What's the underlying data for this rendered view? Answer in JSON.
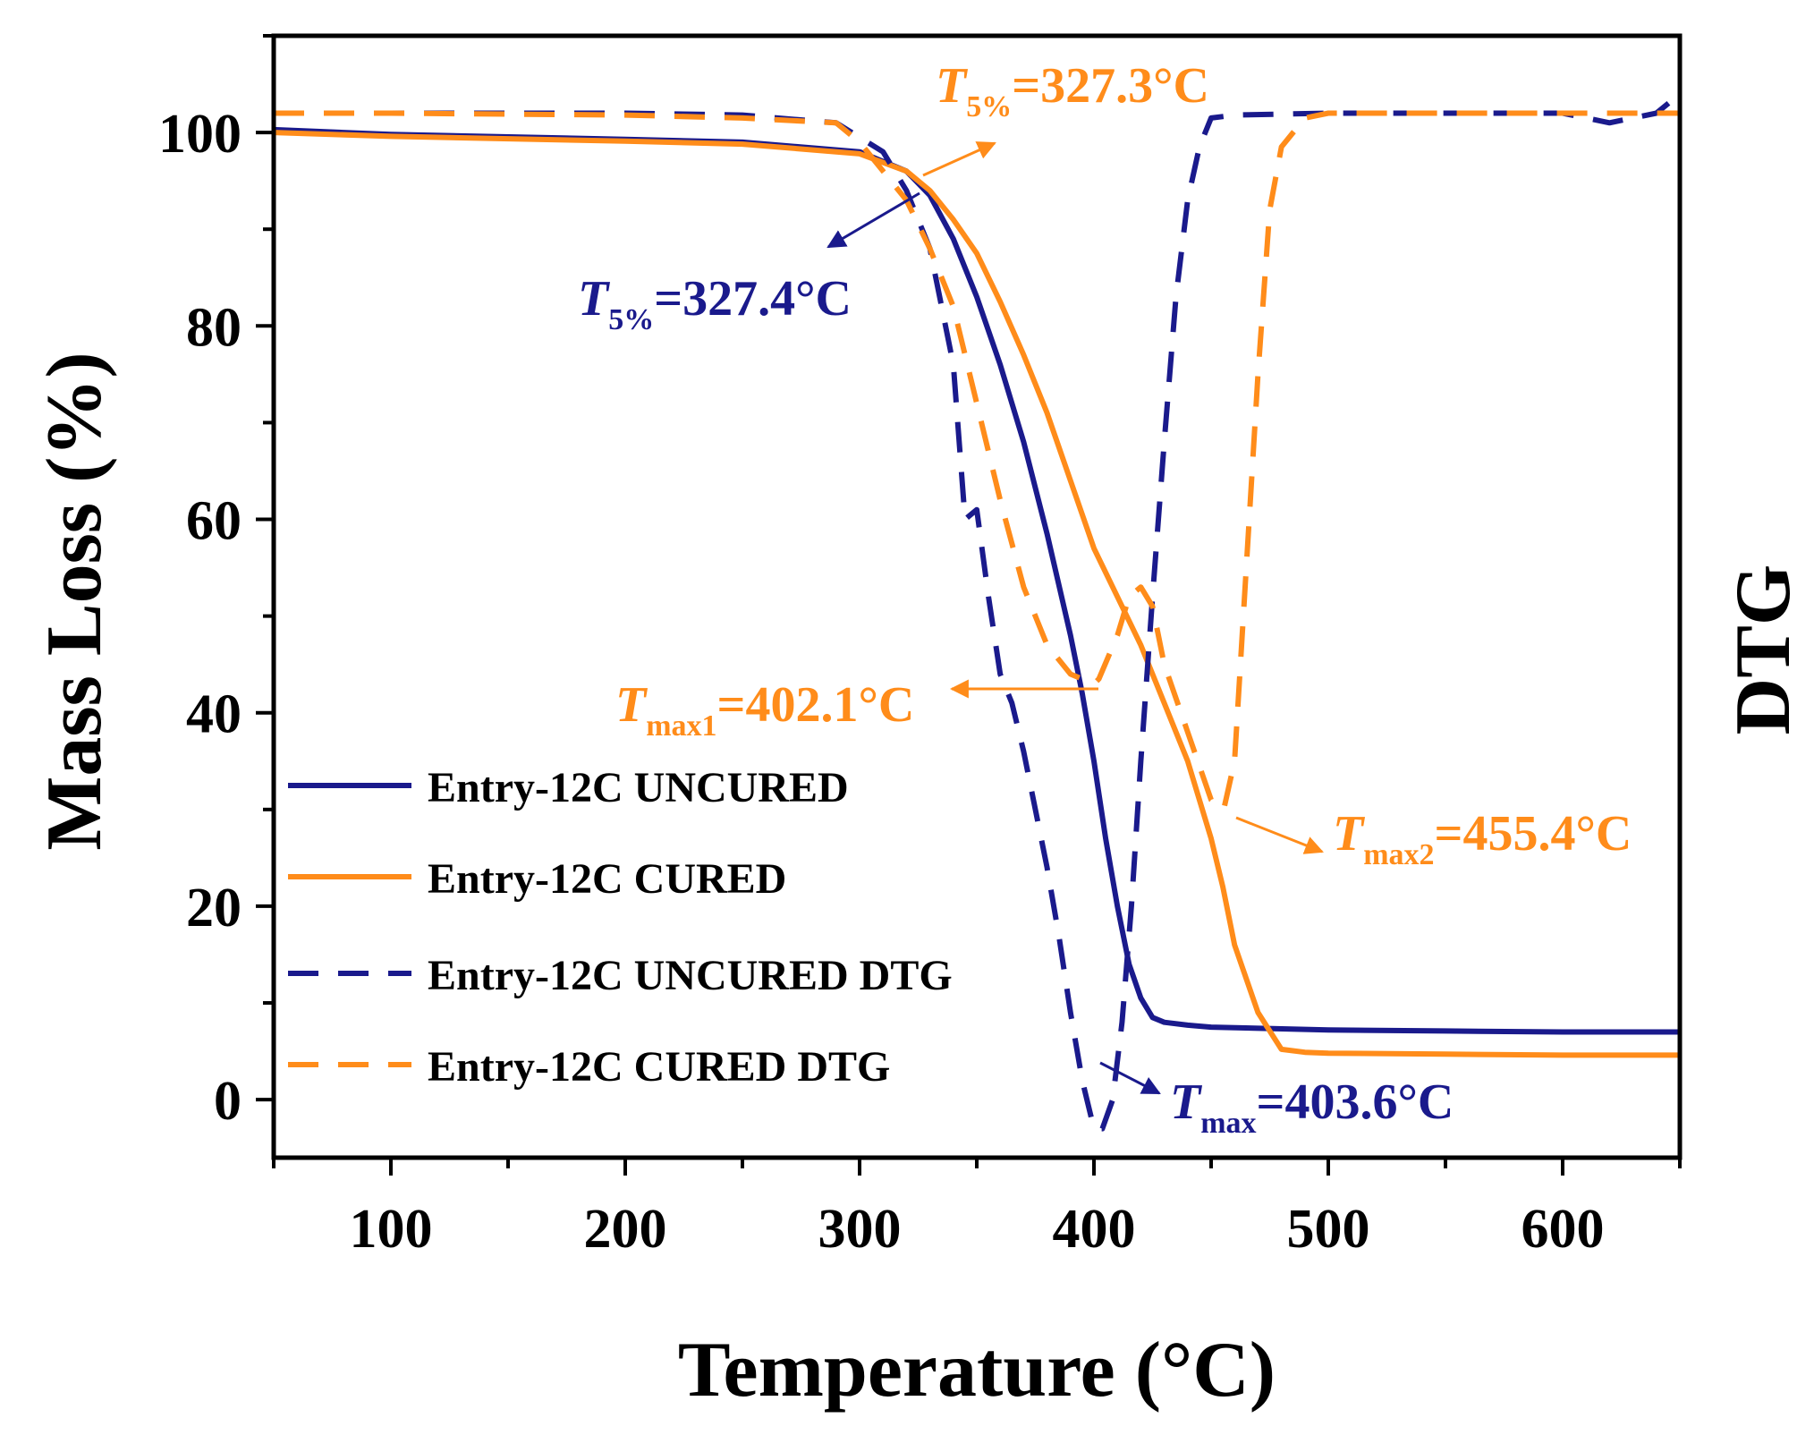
{
  "chart_data": {
    "type": "line",
    "title": "",
    "xlabel": "Temperature (°C)",
    "ylabel": "Mass Loss (%)",
    "y2label": "DTG",
    "xlim": [
      50,
      650
    ],
    "ylim": [
      -6,
      110
    ],
    "xticks": [
      100,
      200,
      300,
      400,
      500,
      600
    ],
    "yticks": [
      0,
      20,
      40,
      60,
      80,
      100
    ],
    "grid": false,
    "legend_position": "lower-left",
    "colors": {
      "uncured": "#1a1a8c",
      "cured": "#ff8c1a"
    },
    "series": [
      {
        "name": "Entry-12C UNCURED",
        "style": "solid",
        "color": "#1a1a8c",
        "x": [
          50,
          100,
          200,
          250,
          300,
          320,
          330,
          340,
          350,
          360,
          370,
          380,
          390,
          395,
          400,
          405,
          410,
          415,
          420,
          425,
          430,
          440,
          450,
          500,
          550,
          600,
          650
        ],
        "y": [
          100.3,
          99.8,
          99.3,
          99.0,
          98.0,
          96.0,
          93.5,
          89.0,
          83.0,
          76.0,
          68.0,
          58.5,
          48.0,
          42.0,
          35.0,
          27.0,
          20.0,
          14.0,
          10.5,
          8.5,
          8.0,
          7.7,
          7.5,
          7.2,
          7.1,
          7.0,
          7.0
        ]
      },
      {
        "name": "Entry-12C CURED",
        "style": "solid",
        "color": "#ff8c1a",
        "x": [
          50,
          100,
          200,
          250,
          300,
          320,
          330,
          340,
          350,
          360,
          370,
          380,
          390,
          400,
          410,
          420,
          430,
          440,
          450,
          455,
          460,
          470,
          480,
          490,
          500,
          550,
          600,
          650
        ],
        "y": [
          100.0,
          99.6,
          99.1,
          98.8,
          97.8,
          96.0,
          94.0,
          91.0,
          87.5,
          82.5,
          77.0,
          71.0,
          64.0,
          57.0,
          52.0,
          47.0,
          41.0,
          35.0,
          27.0,
          22.0,
          16.0,
          9.0,
          5.2,
          4.9,
          4.8,
          4.7,
          4.6,
          4.6
        ]
      },
      {
        "name": "Entry-12C UNCURED DTG",
        "style": "dashed",
        "color": "#1a1a8c",
        "x": [
          50,
          100,
          200,
          250,
          290,
          310,
          320,
          330,
          340,
          345,
          350,
          355,
          360,
          365,
          370,
          375,
          380,
          385,
          390,
          395,
          400,
          403.6,
          408,
          412,
          416,
          420,
          425,
          430,
          435,
          440,
          445,
          450,
          460,
          500,
          550,
          600,
          620,
          640,
          650
        ],
        "y": [
          102.0,
          102.0,
          102.0,
          101.8,
          101.0,
          98.0,
          94.0,
          88.0,
          76.0,
          60.0,
          61.0,
          52.0,
          44.0,
          41.0,
          36.0,
          30.0,
          24.0,
          17.0,
          9.0,
          2.0,
          -3.0,
          -3.0,
          0.0,
          8.0,
          20.0,
          35.0,
          52.0,
          68.0,
          83.0,
          93.0,
          98.5,
          101.5,
          101.8,
          102.0,
          102.0,
          102.0,
          101.0,
          102.0,
          104.0
        ]
      },
      {
        "name": "Entry-12C CURED DTG",
        "style": "dashed",
        "color": "#ff8c1a",
        "x": [
          50,
          100,
          200,
          250,
          290,
          300,
          310,
          320,
          330,
          340,
          350,
          360,
          370,
          380,
          390,
          400,
          402.1,
          410,
          415,
          420,
          425,
          430,
          440,
          450,
          455.4,
          460,
          465,
          470,
          475,
          480,
          490,
          500,
          550,
          600,
          650
        ],
        "y": [
          102.0,
          102.0,
          101.8,
          101.5,
          101.0,
          99.0,
          96.0,
          93.0,
          88.0,
          82.0,
          72.0,
          62.0,
          53.0,
          47.0,
          44.0,
          43.0,
          43.5,
          48.0,
          52.0,
          53.0,
          51.0,
          45.0,
          38.0,
          31.0,
          30.0,
          35.0,
          55.0,
          75.0,
          92.0,
          98.5,
          101.5,
          102.0,
          102.0,
          102.0,
          102.0
        ]
      }
    ],
    "annotations": [
      {
        "italic": "T",
        "sub": "5%",
        "value": "=327.3°C",
        "color": "#ff8c1a"
      },
      {
        "italic": "T",
        "sub": "5%",
        "value": "=327.4°C",
        "color": "#1a1a8c"
      },
      {
        "italic": "T",
        "sub": "max1",
        "value": "=402.1°C",
        "color": "#ff8c1a"
      },
      {
        "italic": "T",
        "sub": "max2",
        "value": "=455.4°C",
        "color": "#ff8c1a"
      },
      {
        "italic": "T",
        "sub": "max",
        "value": "=403.6°C",
        "color": "#1a1a8c"
      }
    ]
  }
}
